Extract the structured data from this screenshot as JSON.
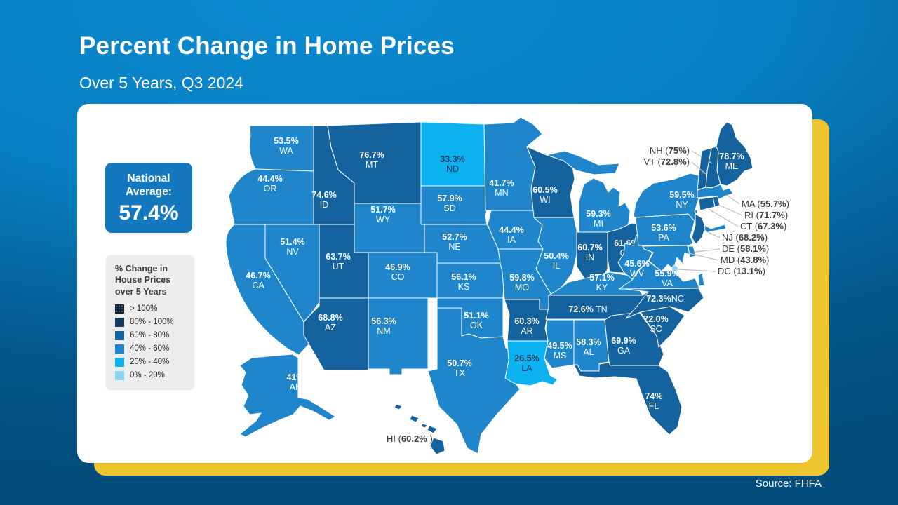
{
  "header": {
    "title": "Percent Change in Home Prices",
    "subtitle": "Over 5 Years, Q3 2024"
  },
  "national_average": {
    "label": "National Average:",
    "text": "57.4%",
    "value": 57.4
  },
  "legend": {
    "title": "% Change in House Prices over 5 Years",
    "buckets": [
      {
        "label": "> 100%",
        "color": "#0c2033",
        "min": 100
      },
      {
        "label": "80% - 100%",
        "color": "#123a5e",
        "min": 80
      },
      {
        "label": "60% - 80%",
        "color": "#15639e",
        "min": 60
      },
      {
        "label": "40% - 60%",
        "color": "#1f86cb",
        "min": 40
      },
      {
        "label": "20% - 40%",
        "color": "#0cb2ef",
        "min": 20
      },
      {
        "label": "0% - 20%",
        "color": "#8ad4f3",
        "min": 0
      }
    ]
  },
  "source": "Source: FHFA",
  "chart_data": {
    "type": "heatmap",
    "subtype": "us-state-choropleth",
    "title": "Percent Change in Home Prices",
    "subtitle": "Over 5 Years, Q3 2024",
    "unit": "percent change over 5 years",
    "national_average": 57.4,
    "legend_position": "left",
    "states": [
      {
        "abbr": "WA",
        "text": "53.5%",
        "value": 53.5
      },
      {
        "abbr": "OR",
        "text": "44.4%",
        "value": 44.4
      },
      {
        "abbr": "CA",
        "text": "46.7%",
        "value": 46.7
      },
      {
        "abbr": "NV",
        "text": "51.4%",
        "value": 51.4
      },
      {
        "abbr": "ID",
        "text": "74.6%",
        "value": 74.6
      },
      {
        "abbr": "MT",
        "text": "76.7%",
        "value": 76.7
      },
      {
        "abbr": "WY",
        "text": "51.7%",
        "value": 51.7
      },
      {
        "abbr": "UT",
        "text": "63.7%",
        "value": 63.7
      },
      {
        "abbr": "CO",
        "text": "46.9%",
        "value": 46.9
      },
      {
        "abbr": "AZ",
        "text": "68.8%",
        "value": 68.8
      },
      {
        "abbr": "NM",
        "text": "56.3%",
        "value": 56.3
      },
      {
        "abbr": "ND",
        "text": "33.3%",
        "value": 33.3
      },
      {
        "abbr": "SD",
        "text": "57.9%",
        "value": 57.9
      },
      {
        "abbr": "NE",
        "text": "52.7%",
        "value": 52.7
      },
      {
        "abbr": "KS",
        "text": "56.1%",
        "value": 56.1
      },
      {
        "abbr": "OK",
        "text": "51.1%",
        "value": 51.1
      },
      {
        "abbr": "TX",
        "text": "50.7%",
        "value": 50.7
      },
      {
        "abbr": "MN",
        "text": "41.7%",
        "value": 41.7
      },
      {
        "abbr": "IA",
        "text": "44.4%",
        "value": 44.4
      },
      {
        "abbr": "MO",
        "text": "59.8%",
        "value": 59.8
      },
      {
        "abbr": "AR",
        "text": "60.3%",
        "value": 60.3
      },
      {
        "abbr": "LA",
        "text": "26.5%",
        "value": 26.5
      },
      {
        "abbr": "WI",
        "text": "60.5%",
        "value": 60.5
      },
      {
        "abbr": "IL",
        "text": "50.4%",
        "value": 50.4
      },
      {
        "abbr": "MI",
        "text": "59.3%",
        "value": 59.3
      },
      {
        "abbr": "IN",
        "text": "60.7%",
        "value": 60.7
      },
      {
        "abbr": "OH",
        "text": "61.6%",
        "value": 61.6
      },
      {
        "abbr": "KY",
        "text": "57.1%",
        "value": 57.1
      },
      {
        "abbr": "TN",
        "text": "72.6%",
        "value": 72.6
      },
      {
        "abbr": "MS",
        "text": "49.5%",
        "value": 49.5
      },
      {
        "abbr": "AL",
        "text": "58.3%",
        "value": 58.3
      },
      {
        "abbr": "GA",
        "text": "69.9%",
        "value": 69.9
      },
      {
        "abbr": "FL",
        "text": "74%",
        "value": 74
      },
      {
        "abbr": "SC",
        "text": "72.0%",
        "value": 72.0
      },
      {
        "abbr": "NC",
        "text": "72.3%",
        "value": 72.3
      },
      {
        "abbr": "VA",
        "text": "55.9%",
        "value": 55.9
      },
      {
        "abbr": "WV",
        "text": "45.6%",
        "value": 45.6
      },
      {
        "abbr": "PA",
        "text": "53.6%",
        "value": 53.6
      },
      {
        "abbr": "NY",
        "text": "59.5%",
        "value": 59.5
      },
      {
        "abbr": "ME",
        "text": "78.7%",
        "value": 78.7
      },
      {
        "abbr": "AK",
        "text": "41%",
        "value": 41
      },
      {
        "abbr": "HI",
        "text": "60.2%",
        "value": 60.2
      },
      {
        "abbr": "NH",
        "text": "75%",
        "value": 75
      },
      {
        "abbr": "VT",
        "text": "72.8%",
        "value": 72.8
      },
      {
        "abbr": "MA",
        "text": "55.7%",
        "value": 55.7
      },
      {
        "abbr": "RI",
        "text": "71.7%",
        "value": 71.7
      },
      {
        "abbr": "CT",
        "text": "67.3%",
        "value": 67.3
      },
      {
        "abbr": "NJ",
        "text": "68.2%",
        "value": 68.2
      },
      {
        "abbr": "DE",
        "text": "58.1%",
        "value": 58.1
      },
      {
        "abbr": "MD",
        "text": "43.8%",
        "value": 43.8
      },
      {
        "abbr": "DC",
        "text": "13.1%",
        "value": 13.1
      }
    ]
  }
}
